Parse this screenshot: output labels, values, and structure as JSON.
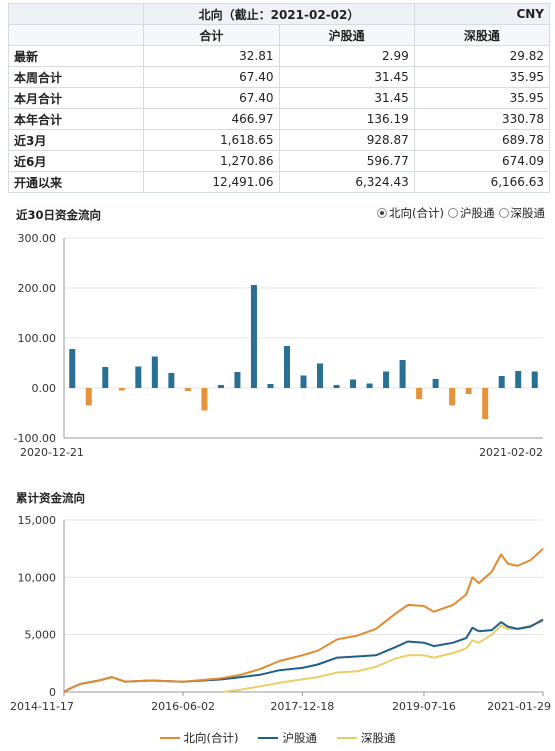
{
  "table": {
    "title": "北向（截止：2021-02-02）",
    "currency": "CNY",
    "headers": [
      "合计",
      "沪股通",
      "深股通"
    ],
    "rows": [
      {
        "label": "最新",
        "values": [
          "32.81",
          "2.99",
          "29.82"
        ]
      },
      {
        "label": "本周合计",
        "values": [
          "67.40",
          "31.45",
          "35.95"
        ]
      },
      {
        "label": "本月合计",
        "values": [
          "67.40",
          "31.45",
          "35.95"
        ]
      },
      {
        "label": "本年合计",
        "values": [
          "466.97",
          "136.19",
          "330.78"
        ]
      },
      {
        "label": "近3月",
        "values": [
          "1,618.65",
          "928.87",
          "689.78"
        ]
      },
      {
        "label": "近6月",
        "values": [
          "1,270.86",
          "596.77",
          "674.09"
        ]
      },
      {
        "label": "开通以来",
        "values": [
          "12,491.06",
          "6,324.43",
          "6,166.63"
        ]
      }
    ]
  },
  "colors": {
    "positive": "#2a6f94",
    "negative": "#e8923a",
    "north": "#e38a2e",
    "sh": "#1f5f8b",
    "sz": "#e8cf6a",
    "grid": "#e5e5e5"
  },
  "chart_data": [
    {
      "type": "bar",
      "title": "近30日资金流向",
      "options": [
        "北向(合计)",
        "沪股通",
        "深股通"
      ],
      "selected": "北向(合计)",
      "ylim": [
        -100,
        300
      ],
      "yticks": [
        "300.00",
        "200.00",
        "100.00",
        "0.00",
        "-100.00"
      ],
      "ytick_values": [
        300,
        200,
        100,
        0,
        -100
      ],
      "x_labels": [
        "2020-12-21",
        "2021-02-02"
      ],
      "values": [
        78,
        -35,
        42,
        -5,
        43,
        63,
        30,
        -6,
        -45,
        6,
        32,
        206,
        8,
        84,
        25,
        49,
        6,
        17,
        9,
        33,
        56,
        -22,
        18,
        -35,
        -12,
        -62,
        24,
        34,
        33
      ]
    },
    {
      "type": "line",
      "title": "累计资金流向",
      "ylim": [
        0,
        15000
      ],
      "yticks": [
        "15,000",
        "10,000",
        "5,000",
        "0"
      ],
      "ytick_values": [
        15000,
        10000,
        5000,
        0
      ],
      "x_labels": [
        "2014-11-17",
        "2016-06-02",
        "2017-12-18",
        "2019-07-16",
        "2021-01-29"
      ],
      "x_range": [
        "2014-11-17",
        "2021-01-29"
      ],
      "series": [
        {
          "name": "北向(合计)",
          "color_key": "north",
          "points": [
            [
              "2014-11-17",
              0
            ],
            [
              "2014-12-15",
              300
            ],
            [
              "2015-02-01",
              700
            ],
            [
              "2015-05-01",
              1000
            ],
            [
              "2015-07-01",
              1300
            ],
            [
              "2015-09-01",
              900
            ],
            [
              "2016-01-01",
              1000
            ],
            [
              "2016-06-01",
              900
            ],
            [
              "2016-12-01",
              1200
            ],
            [
              "2017-03-01",
              1500
            ],
            [
              "2017-06-01",
              2000
            ],
            [
              "2017-09-01",
              2700
            ],
            [
              "2017-12-18",
              3200
            ],
            [
              "2018-03-01",
              3600
            ],
            [
              "2018-06-01",
              4600
            ],
            [
              "2018-09-01",
              4900
            ],
            [
              "2018-12-01",
              5500
            ],
            [
              "2019-03-01",
              6800
            ],
            [
              "2019-05-01",
              7600
            ],
            [
              "2019-07-16",
              7500
            ],
            [
              "2019-09-01",
              7000
            ],
            [
              "2019-12-01",
              7600
            ],
            [
              "2020-02-01",
              8500
            ],
            [
              "2020-03-01",
              10000
            ],
            [
              "2020-04-01",
              9500
            ],
            [
              "2020-06-01",
              10500
            ],
            [
              "2020-07-15",
              12000
            ],
            [
              "2020-08-15",
              11200
            ],
            [
              "2020-10-01",
              11000
            ],
            [
              "2020-12-01",
              11500
            ],
            [
              "2021-01-29",
              12491
            ]
          ]
        },
        {
          "name": "沪股通",
          "color_key": "sh",
          "points": [
            [
              "2014-11-17",
              0
            ],
            [
              "2014-12-15",
              300
            ],
            [
              "2015-02-01",
              700
            ],
            [
              "2015-05-01",
              1000
            ],
            [
              "2015-07-01",
              1300
            ],
            [
              "2015-09-01",
              900
            ],
            [
              "2016-01-01",
              1000
            ],
            [
              "2016-06-01",
              900
            ],
            [
              "2016-12-01",
              1100
            ],
            [
              "2017-03-01",
              1300
            ],
            [
              "2017-06-01",
              1500
            ],
            [
              "2017-09-01",
              1900
            ],
            [
              "2017-12-18",
              2100
            ],
            [
              "2018-03-01",
              2400
            ],
            [
              "2018-06-01",
              3000
            ],
            [
              "2018-09-01",
              3100
            ],
            [
              "2018-12-01",
              3200
            ],
            [
              "2019-03-01",
              3900
            ],
            [
              "2019-05-01",
              4400
            ],
            [
              "2019-07-16",
              4300
            ],
            [
              "2019-09-01",
              4000
            ],
            [
              "2019-12-01",
              4300
            ],
            [
              "2020-02-01",
              4700
            ],
            [
              "2020-03-01",
              5600
            ],
            [
              "2020-04-01",
              5300
            ],
            [
              "2020-06-01",
              5400
            ],
            [
              "2020-07-15",
              6100
            ],
            [
              "2020-08-15",
              5700
            ],
            [
              "2020-10-01",
              5500
            ],
            [
              "2020-12-01",
              5700
            ],
            [
              "2021-01-29",
              6324
            ]
          ]
        },
        {
          "name": "深股通",
          "color_key": "sz",
          "points": [
            [
              "2016-12-05",
              0
            ],
            [
              "2017-03-01",
              200
            ],
            [
              "2017-06-01",
              500
            ],
            [
              "2017-09-01",
              800
            ],
            [
              "2017-12-18",
              1100
            ],
            [
              "2018-03-01",
              1300
            ],
            [
              "2018-06-01",
              1700
            ],
            [
              "2018-09-01",
              1800
            ],
            [
              "2018-12-01",
              2200
            ],
            [
              "2019-03-01",
              2900
            ],
            [
              "2019-05-01",
              3200
            ],
            [
              "2019-07-16",
              3200
            ],
            [
              "2019-09-01",
              3000
            ],
            [
              "2019-12-01",
              3400
            ],
            [
              "2020-02-01",
              3800
            ],
            [
              "2020-03-01",
              4500
            ],
            [
              "2020-04-01",
              4300
            ],
            [
              "2020-06-01",
              5000
            ],
            [
              "2020-07-15",
              5800
            ],
            [
              "2020-08-15",
              5500
            ],
            [
              "2020-10-01",
              5500
            ],
            [
              "2020-12-01",
              5800
            ],
            [
              "2021-01-29",
              6167
            ]
          ]
        }
      ]
    }
  ]
}
